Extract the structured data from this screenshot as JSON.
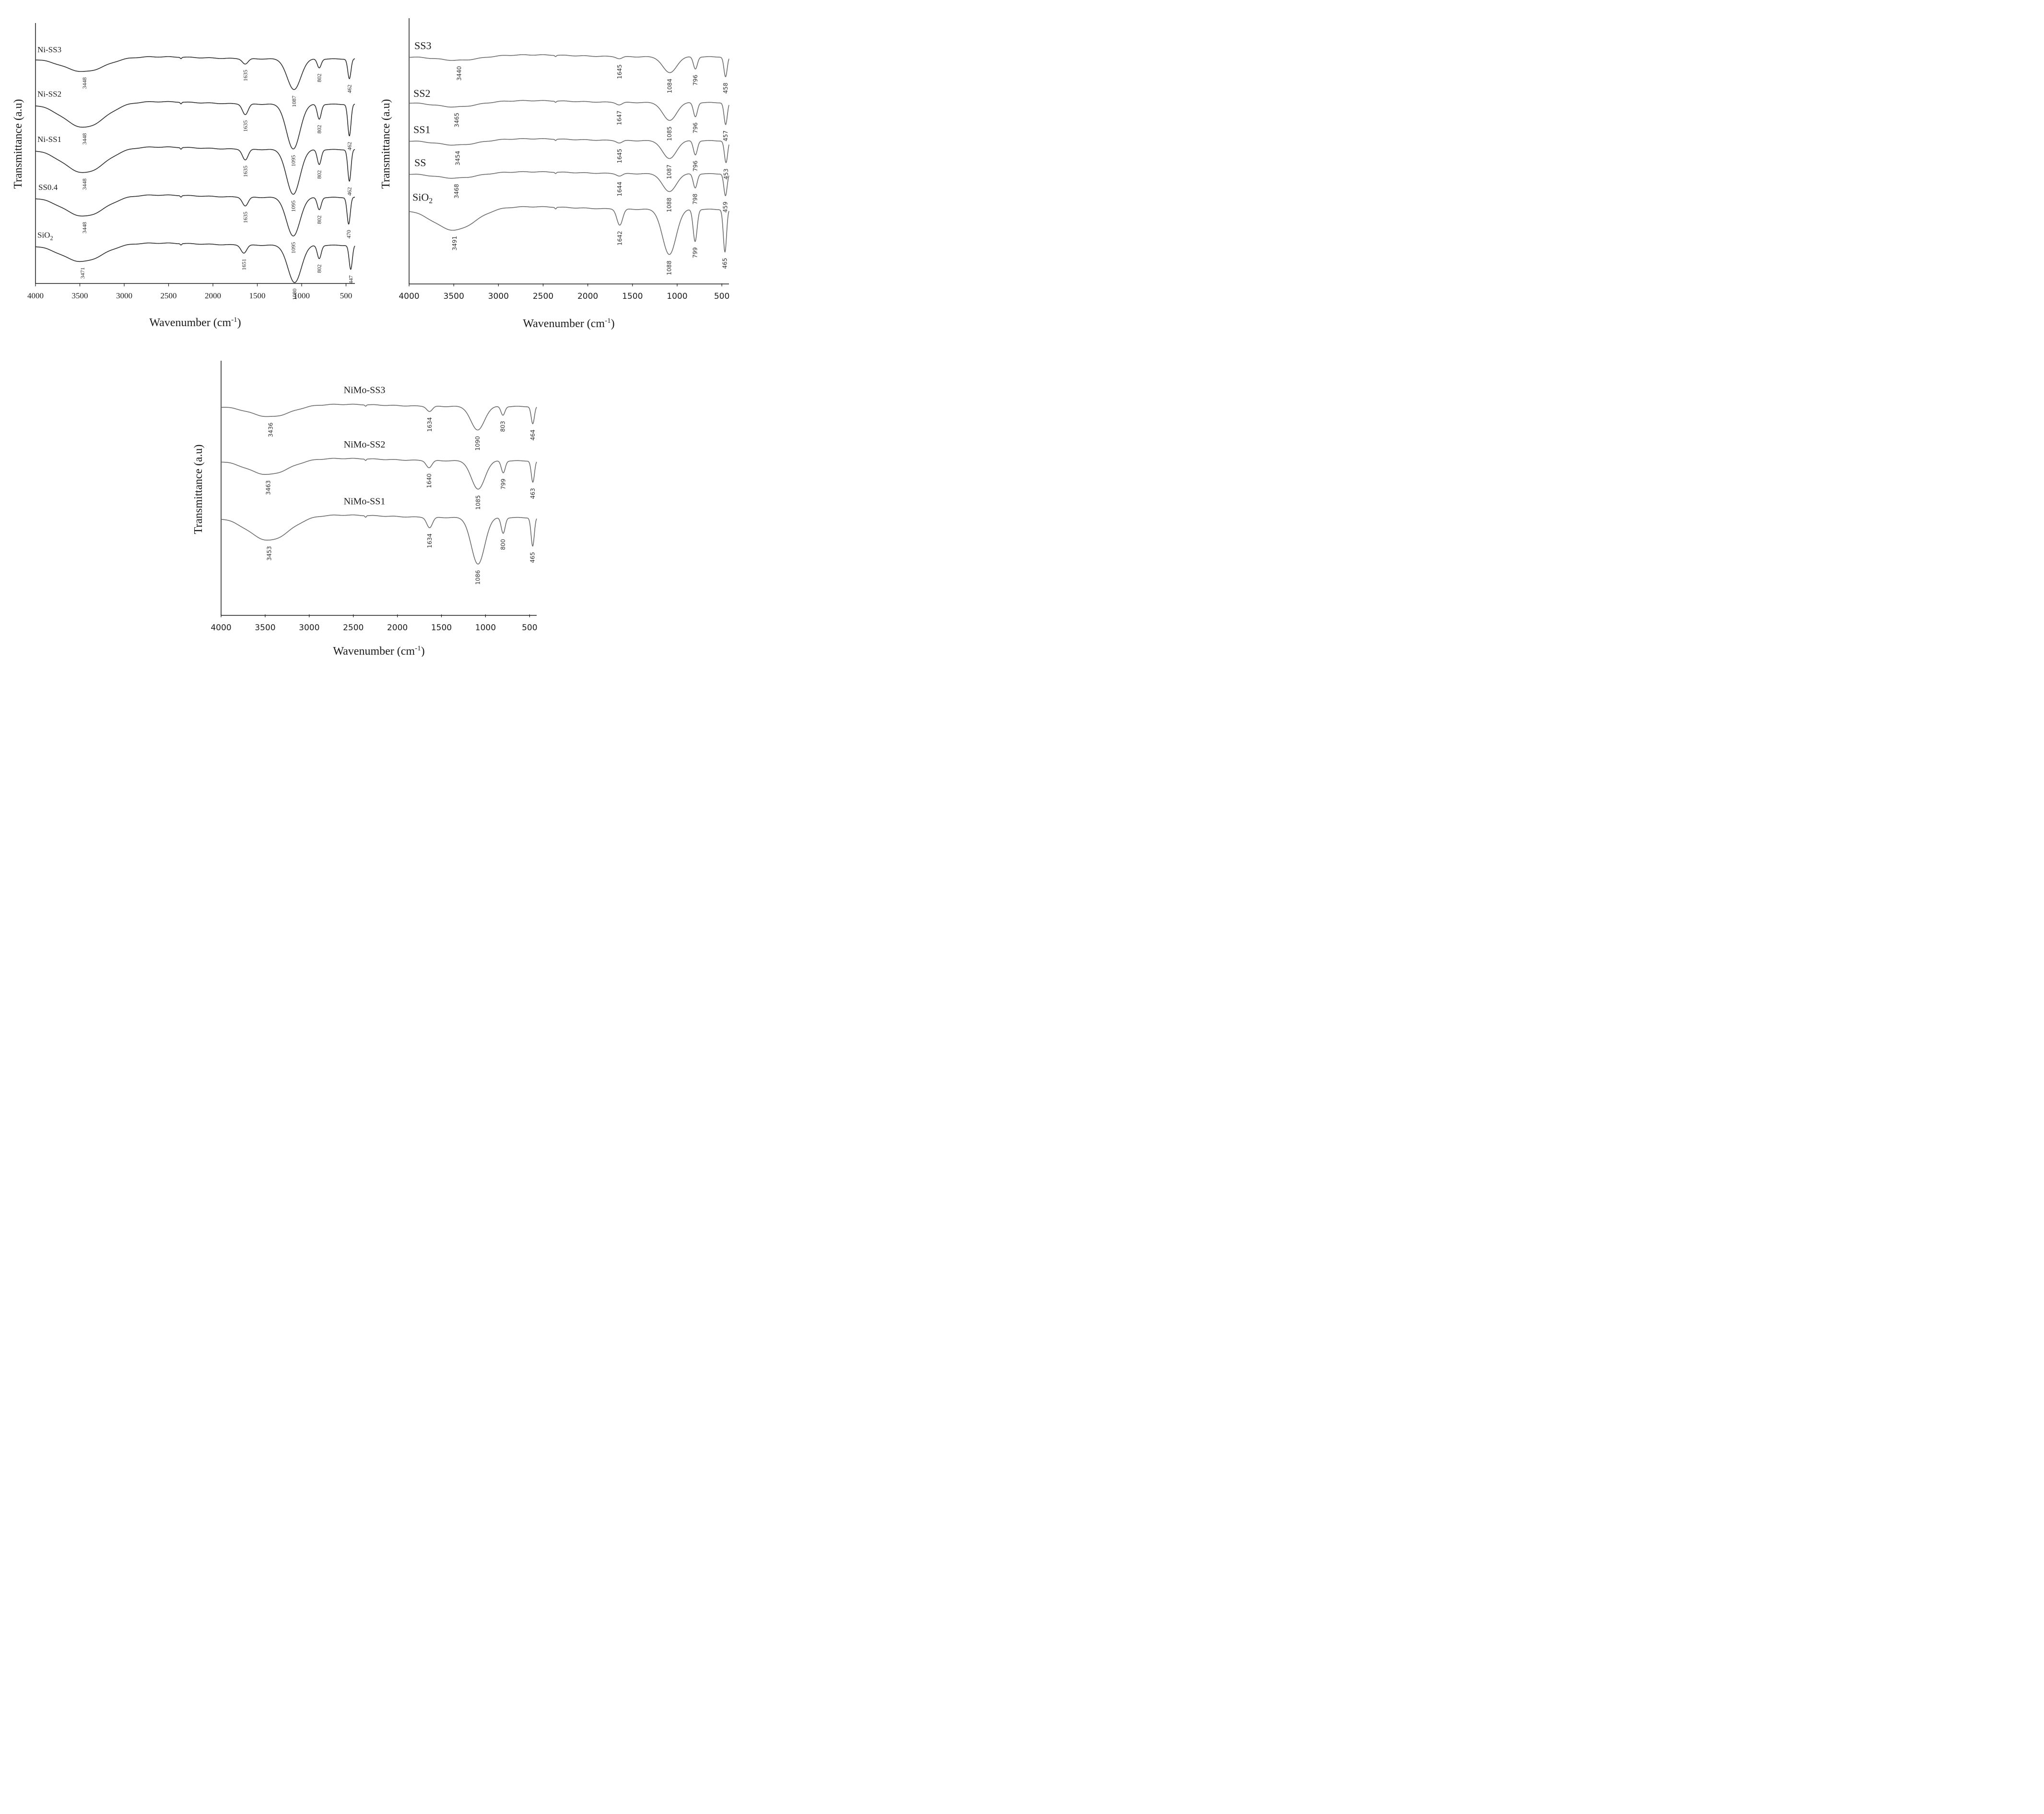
{
  "colors": {
    "dark": "#2b2b2b",
    "gray": "#6b6b6b",
    "black": "#111111"
  },
  "chart_data": [
    {
      "type": "line",
      "id": "panel-ni",
      "title": "",
      "xlabel": "Wavenumber (cm",
      "xlabel_sup": "-1",
      "xlabel_close": ")",
      "ylabel": "Transmittance (a.u)",
      "xlim": [
        4000,
        400
      ],
      "x_ticks": [
        4000,
        3500,
        3000,
        2500,
        2000,
        1500,
        1000,
        500
      ],
      "grid": false,
      "series": [
        {
          "name": "Ni-SS3",
          "label": "Ni-SS3",
          "baseline": 0.88,
          "scale": 0.5,
          "peaks": [
            {
              "x": 3448,
              "depth": 0.3,
              "label": "3448"
            },
            {
              "x": 1635,
              "depth": 0.12,
              "label": "1635"
            },
            {
              "x": 1087,
              "depth": 0.7,
              "label": "1087"
            },
            {
              "x": 802,
              "depth": 0.2,
              "label": "802"
            },
            {
              "x": 462,
              "depth": 0.45,
              "label": "462"
            }
          ]
        },
        {
          "name": "Ni-SS2",
          "label": "Ni-SS2",
          "baseline": 0.7,
          "scale": 0.6,
          "peaks": [
            {
              "x": 3448,
              "depth": 0.45,
              "label": "3448"
            },
            {
              "x": 1635,
              "depth": 0.2,
              "label": "1635"
            },
            {
              "x": 1095,
              "depth": 0.85,
              "label": "1095"
            },
            {
              "x": 802,
              "depth": 0.28,
              "label": "802"
            },
            {
              "x": 462,
              "depth": 0.6,
              "label": "462"
            }
          ]
        },
        {
          "name": "Ni-SS1",
          "label": "Ni-SS1",
          "baseline": 0.52,
          "scale": 0.6,
          "peaks": [
            {
              "x": 3448,
              "depth": 0.45,
              "label": "3448"
            },
            {
              "x": 1635,
              "depth": 0.2,
              "label": "1635"
            },
            {
              "x": 1095,
              "depth": 0.85,
              "label": "1095"
            },
            {
              "x": 802,
              "depth": 0.28,
              "label": "802"
            },
            {
              "x": 462,
              "depth": 0.6,
              "label": "462"
            }
          ]
        },
        {
          "name": "SS0.4",
          "label": "SS0.4",
          "baseline": 0.33,
          "scale": 0.55,
          "peaks": [
            {
              "x": 3448,
              "depth": 0.4,
              "label": "3448"
            },
            {
              "x": 1635,
              "depth": 0.18,
              "label": "1635"
            },
            {
              "x": 1095,
              "depth": 0.8,
              "label": "1095"
            },
            {
              "x": 802,
              "depth": 0.25,
              "label": "802"
            },
            {
              "x": 470,
              "depth": 0.55,
              "label": "470"
            }
          ]
        },
        {
          "name": "SiO2",
          "label": "SiO",
          "label_sub": "2",
          "baseline": 0.14,
          "scale": 0.5,
          "peaks": [
            {
              "x": 3471,
              "depth": 0.38,
              "label": "3471"
            },
            {
              "x": 1651,
              "depth": 0.18,
              "label": "1651"
            },
            {
              "x": 1080,
              "depth": 0.85,
              "label": "1080"
            },
            {
              "x": 802,
              "depth": 0.3,
              "label": "802"
            },
            {
              "x": 447,
              "depth": 0.55,
              "label": "447"
            }
          ]
        }
      ]
    },
    {
      "type": "line",
      "id": "panel-ss",
      "title": "",
      "xlabel": "Wavenumber (cm",
      "xlabel_sup": "-1",
      "xlabel_close": ")",
      "ylabel": "Transmittance (a.u)",
      "xlim": [
        4000,
        420
      ],
      "x_ticks": [
        4000,
        3500,
        3000,
        2500,
        2000,
        1500,
        1000,
        500
      ],
      "grid": false,
      "series": [
        {
          "name": "SS3",
          "label": "SS3",
          "baseline": 0.88,
          "scale": 0.45,
          "peaks": [
            {
              "x": 3440,
              "depth": 0.1,
              "label": "3440"
            },
            {
              "x": 1645,
              "depth": 0.05,
              "label": "1645"
            },
            {
              "x": 1084,
              "depth": 0.4,
              "label": "1084"
            },
            {
              "x": 796,
              "depth": 0.3,
              "label": "796"
            },
            {
              "x": 458,
              "depth": 0.5,
              "label": "458"
            }
          ]
        },
        {
          "name": "SS2",
          "label": "SS2",
          "baseline": 0.7,
          "scale": 0.45,
          "peaks": [
            {
              "x": 3465,
              "depth": 0.12,
              "label": "3465"
            },
            {
              "x": 1647,
              "depth": 0.06,
              "label": "1647"
            },
            {
              "x": 1085,
              "depth": 0.45,
              "label": "1085"
            },
            {
              "x": 796,
              "depth": 0.35,
              "label": "796"
            },
            {
              "x": 457,
              "depth": 0.55,
              "label": "457"
            }
          ]
        },
        {
          "name": "SS1",
          "label": "SS1",
          "baseline": 0.55,
          "scale": 0.45,
          "peaks": [
            {
              "x": 3454,
              "depth": 0.12,
              "label": "3454"
            },
            {
              "x": 1645,
              "depth": 0.06,
              "label": "1645"
            },
            {
              "x": 1087,
              "depth": 0.45,
              "label": "1087"
            },
            {
              "x": 796,
              "depth": 0.35,
              "label": "796"
            },
            {
              "x": 453,
              "depth": 0.55,
              "label": "453"
            }
          ]
        },
        {
          "name": "SS",
          "label": "SS",
          "baseline": 0.42,
          "scale": 0.45,
          "peaks": [
            {
              "x": 3468,
              "depth": 0.12,
              "label": "3468"
            },
            {
              "x": 1644,
              "depth": 0.06,
              "label": "1644"
            },
            {
              "x": 1088,
              "depth": 0.45,
              "label": "1088"
            },
            {
              "x": 798,
              "depth": 0.35,
              "label": "798"
            },
            {
              "x": 459,
              "depth": 0.55,
              "label": "459"
            }
          ]
        },
        {
          "name": "SiO2",
          "label": "SiO",
          "label_sub": "2",
          "baseline": 0.28,
          "scale": 0.6,
          "peaks": [
            {
              "x": 3491,
              "depth": 0.4,
              "label": "3491"
            },
            {
              "x": 1642,
              "depth": 0.3,
              "label": "1642"
            },
            {
              "x": 1088,
              "depth": 0.85,
              "label": "1088"
            },
            {
              "x": 799,
              "depth": 0.6,
              "label": "799"
            },
            {
              "x": 465,
              "depth": 0.8,
              "label": "465"
            }
          ]
        }
      ]
    },
    {
      "type": "line",
      "id": "panel-nimo",
      "title": "",
      "xlabel": "Wavenumber (cm",
      "xlabel_sup": "-1",
      "xlabel_close": ")",
      "ylabel": "Transmittance (a.u)",
      "xlim": [
        4000,
        420
      ],
      "x_ticks": [
        4000,
        3500,
        3000,
        2500,
        2000,
        1500,
        1000,
        500
      ],
      "grid": false,
      "series": [
        {
          "name": "NiMo-SS3",
          "label": "NiMo-SS3",
          "baseline": 0.83,
          "scale": 0.5,
          "peaks": [
            {
              "x": 3436,
              "depth": 0.25,
              "label": "3436"
            },
            {
              "x": 1634,
              "depth": 0.12,
              "label": "1634"
            },
            {
              "x": 1090,
              "depth": 0.55,
              "label": "1090"
            },
            {
              "x": 803,
              "depth": 0.2,
              "label": "803"
            },
            {
              "x": 464,
              "depth": 0.4,
              "label": "464"
            }
          ]
        },
        {
          "name": "NiMo-SS2",
          "label": "NiMo-SS2",
          "baseline": 0.61,
          "scale": 0.55,
          "peaks": [
            {
              "x": 3463,
              "depth": 0.3,
              "label": "3463"
            },
            {
              "x": 1640,
              "depth": 0.15,
              "label": "1640"
            },
            {
              "x": 1085,
              "depth": 0.6,
              "label": "1085"
            },
            {
              "x": 799,
              "depth": 0.25,
              "label": "799"
            },
            {
              "x": 463,
              "depth": 0.45,
              "label": "463"
            }
          ]
        },
        {
          "name": "NiMo-SS1",
          "label": "NiMo-SS1",
          "baseline": 0.38,
          "scale": 0.6,
          "peaks": [
            {
              "x": 3453,
              "depth": 0.45,
              "label": "3453"
            },
            {
              "x": 1634,
              "depth": 0.2,
              "label": "1634"
            },
            {
              "x": 1086,
              "depth": 0.9,
              "label": "1086"
            },
            {
              "x": 800,
              "depth": 0.3,
              "label": "800"
            },
            {
              "x": 465,
              "depth": 0.55,
              "label": "465"
            }
          ]
        }
      ]
    }
  ]
}
